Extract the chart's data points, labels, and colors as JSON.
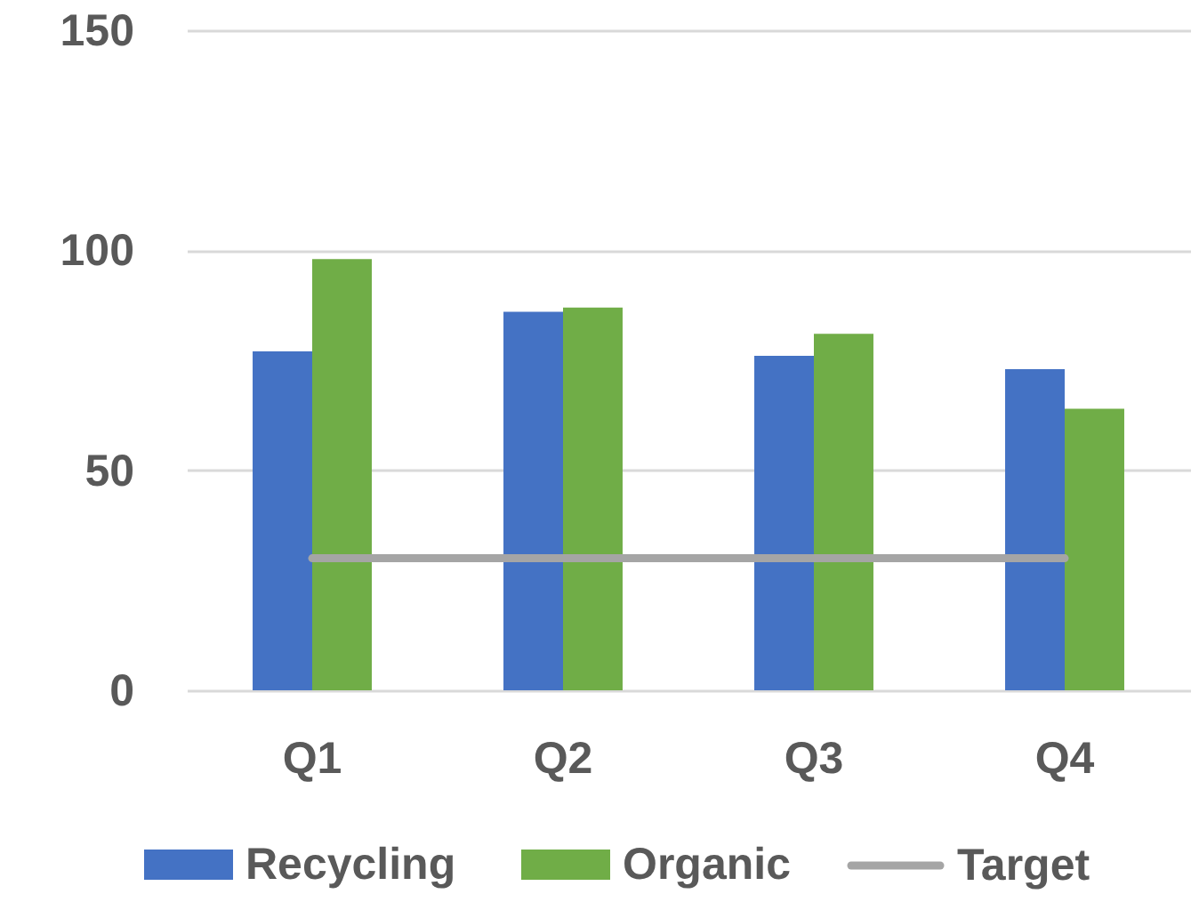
{
  "chart_data": {
    "type": "bar",
    "categories": [
      "Q1",
      "Q2",
      "Q3",
      "Q4"
    ],
    "series": [
      {
        "name": "Recycling",
        "color": "#4472c4",
        "values": [
          77,
          86,
          76,
          73
        ]
      },
      {
        "name": "Organic",
        "color": "#70ad47",
        "values": [
          98,
          87,
          81,
          64
        ]
      },
      {
        "name": "Target",
        "type": "line",
        "color": "#a5a5a5",
        "values": [
          30,
          30,
          30,
          30
        ]
      }
    ],
    "ylim": [
      0,
      150
    ],
    "yticks": [
      0,
      50,
      100,
      150
    ],
    "grid": "y",
    "legend": "bottom"
  }
}
